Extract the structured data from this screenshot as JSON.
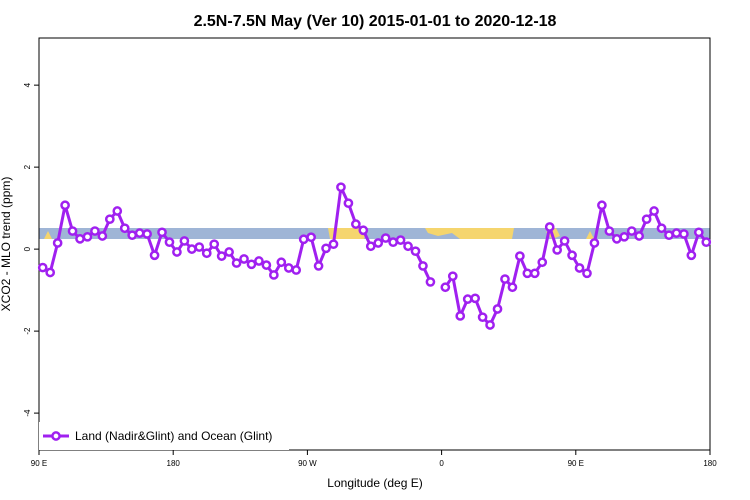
{
  "chart_data": {
    "type": "line",
    "title": "2.5N-7.5N May (Ver 10)   2015-01-01 to 2020-12-18",
    "x_label": "Longitude (deg E)",
    "y_label": "XCO2 - MLO trend (ppm)",
    "xlim": [
      90,
      540
    ],
    "xticks": [
      {
        "value": 90,
        "label": "90 E"
      },
      180,
      {
        "value": 270,
        "label": "90 W"
      },
      {
        "value": 360,
        "label": "0"
      },
      {
        "value": 450,
        "label": "90 E"
      },
      {
        "value": 540,
        "label": "180"
      }
    ],
    "ylim": [
      -4.9,
      5.15
    ],
    "yticks": [
      -4,
      -2,
      0,
      2,
      4
    ],
    "grid": false,
    "legend": "bottom-left",
    "x": [
      92.5,
      97.5,
      102.5,
      107.5,
      112.5,
      117.5,
      122.5,
      127.5,
      132.5,
      137.5,
      142.5,
      147.5,
      152.5,
      157.5,
      162.5,
      167.5,
      172.5,
      177.5,
      182.5,
      187.5,
      192.5,
      197.5,
      202.5,
      207.5,
      212.5,
      217.5,
      222.5,
      227.5,
      232.5,
      237.5,
      242.5,
      247.5,
      252.5,
      257.5,
      262.5,
      267.5,
      272.5,
      277.5,
      282.5,
      287.5,
      292.5,
      297.5,
      302.5,
      307.5,
      312.5,
      317.5,
      322.5,
      327.5,
      332.5,
      337.5,
      342.5,
      347.5,
      352.5,
      357.5,
      362.5,
      367.5,
      372.5,
      377.5,
      382.5,
      387.5,
      392.5,
      397.5,
      402.5,
      407.5,
      412.5,
      417.5,
      422.5,
      427.5,
      432.5,
      437.5,
      442.5,
      447.5,
      452.5,
      457.5,
      462.5,
      467.5,
      472.5,
      477.5,
      482.5,
      487.5,
      492.5,
      497.5,
      502.5,
      507.5,
      512.5,
      517.5,
      522.5,
      527.5,
      532.5,
      537.5
    ],
    "series": [
      {
        "name": "Land (Nadir&Glint) and Ocean (Glint)",
        "color": "#a020f0",
        "values": [
          -0.45,
          -0.57,
          0.15,
          1.07,
          0.44,
          0.25,
          0.3,
          0.44,
          0.32,
          0.73,
          0.93,
          0.51,
          0.34,
          0.39,
          0.37,
          -0.15,
          0.41,
          0.17,
          -0.07,
          0.2,
          0.0,
          0.05,
          -0.1,
          0.12,
          -0.17,
          -0.07,
          -0.34,
          -0.24,
          -0.37,
          -0.29,
          -0.39,
          -0.63,
          -0.32,
          -0.46,
          -0.51,
          0.24,
          0.29,
          -0.41,
          0.02,
          0.12,
          1.51,
          1.12,
          0.61,
          0.46,
          0.07,
          0.15,
          0.27,
          0.17,
          0.22,
          0.07,
          -0.05,
          -0.41,
          -0.8,
          null,
          -0.93,
          -0.66,
          -1.63,
          -1.22,
          -1.2,
          -1.66,
          -1.85,
          -1.46,
          -0.73,
          -0.93,
          -0.17,
          -0.59,
          -0.59,
          -0.32,
          0.54,
          -0.02,
          0.2,
          -0.15,
          -0.46,
          -0.59,
          0.15,
          1.07,
          0.44,
          0.25,
          0.3,
          0.44,
          0.32,
          0.73,
          0.93,
          0.51,
          0.34,
          0.39,
          0.37,
          -0.15,
          0.41,
          0.17
        ]
      }
    ]
  }
}
